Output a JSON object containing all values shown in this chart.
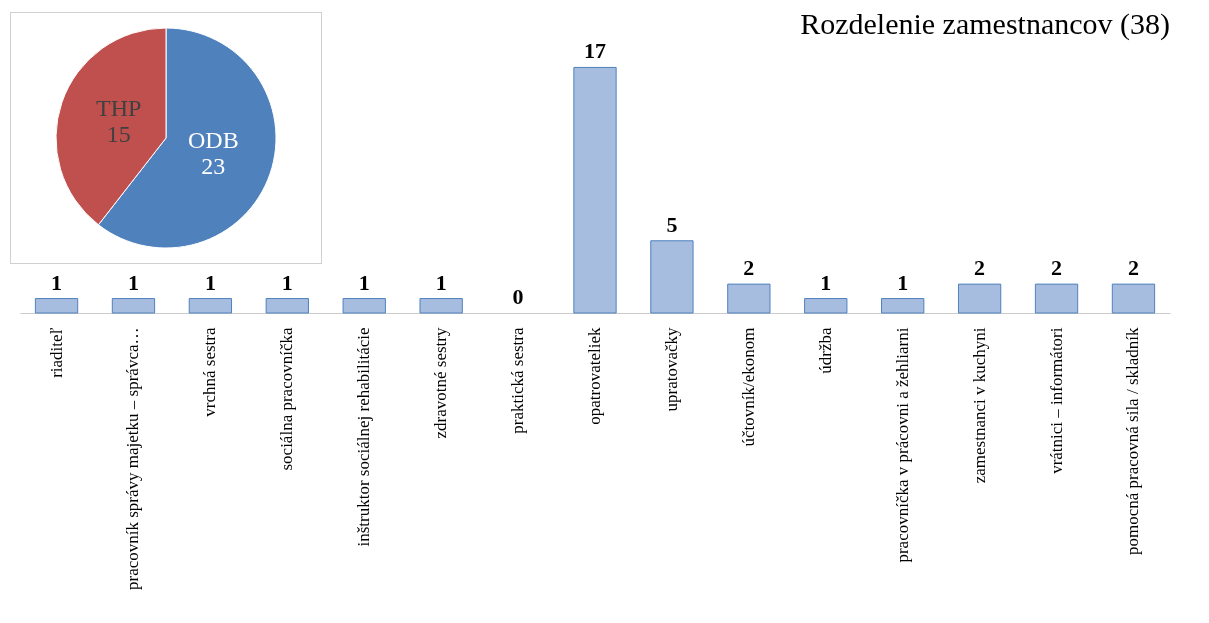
{
  "chart_data": [
    {
      "type": "pie",
      "categories": [
        "ODB",
        "THP"
      ],
      "values": [
        23,
        15
      ],
      "colors": [
        "#4f81bd",
        "#c0504d"
      ],
      "data_labels": true
    },
    {
      "type": "bar",
      "title": "Rozdelenie zamestnancov (38)",
      "categories": [
        "riaditeľ",
        "pracovník správy majetku – správca…",
        "vrchná sestra",
        "sociálna pracovníčka",
        "inštruktor sociálnej rehabilitácie",
        "zdravotné sestry",
        "praktická sestra",
        "opatrovateliek",
        "upratovačky",
        "účtovník/ekonom",
        "údržba",
        "pracovníčka v prácovni a žehliarni",
        "zamestnanci v kuchyni",
        "vrátnici – informátori",
        "pomocná pracovná sila / skladník"
      ],
      "values": [
        1,
        1,
        1,
        1,
        1,
        1,
        0,
        17,
        5,
        2,
        1,
        1,
        2,
        2,
        2
      ],
      "color": "#a7bde0",
      "data_labels": true
    }
  ]
}
